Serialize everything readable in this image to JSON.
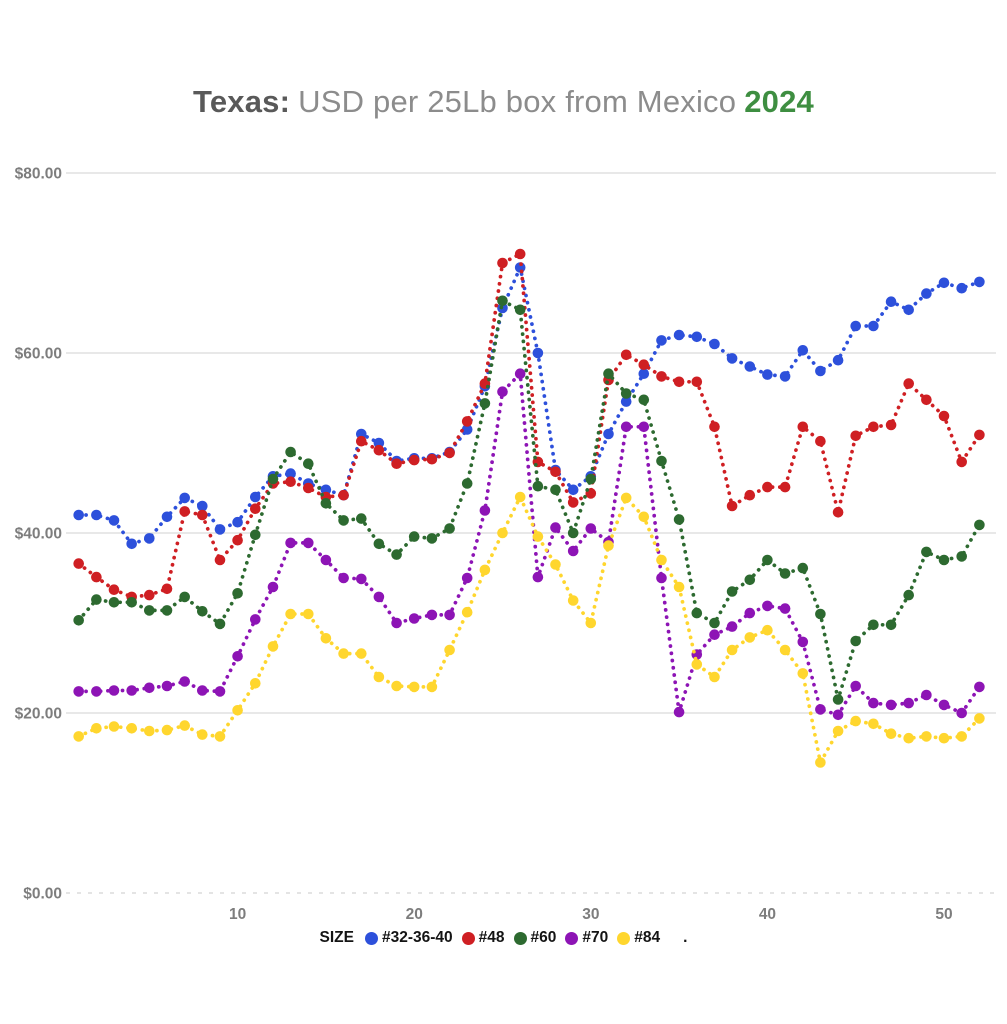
{
  "title": {
    "prefix": "Texas:",
    "main": "USD per 25Lb box from Mexico",
    "year": "2024"
  },
  "colors": {
    "title_prefix": "#595959",
    "title_main": "#8c8c8c",
    "title_year": "#3e8e41",
    "axis_label": "#7d7d7d",
    "gridline": "#d9d9d9",
    "zeroline": "#d4d4d4",
    "legend_text": "#141414"
  },
  "legend": {
    "title": "SIZE",
    "trailing_label": "."
  },
  "chart_data": {
    "type": "line",
    "title": "Texas: USD per 25Lb box from Mexico 2024",
    "xlabel": "",
    "ylabel": "",
    "xlim": [
      1,
      52
    ],
    "ylim": [
      0,
      80
    ],
    "grid": "horizontal",
    "legend_position": "bottom",
    "marker": "dot-dashed",
    "x_ticks": [
      10,
      20,
      30,
      40,
      50
    ],
    "y_ticks": [
      {
        "label": "$80.00",
        "value": 80
      },
      {
        "label": "$60.00",
        "value": 60
      },
      {
        "label": "$40.00",
        "value": 40
      },
      {
        "label": "$20.00",
        "value": 20
      },
      {
        "label": "$0.00",
        "value": 0
      }
    ],
    "x": [
      1,
      2,
      3,
      4,
      5,
      6,
      7,
      8,
      9,
      10,
      11,
      12,
      13,
      14,
      15,
      16,
      17,
      18,
      19,
      20,
      21,
      22,
      23,
      24,
      25,
      26,
      27,
      28,
      29,
      30,
      31,
      32,
      33,
      34,
      35,
      36,
      37,
      38,
      39,
      40,
      41,
      42,
      43,
      44,
      45,
      46,
      47,
      48,
      49,
      50,
      51,
      52
    ],
    "series": [
      {
        "name": "#32-36-40",
        "color": "#2d50db",
        "values": [
          42,
          42,
          41.4,
          38.8,
          39.4,
          41.8,
          43.9,
          43,
          40.4,
          41.2,
          44,
          46.3,
          46.6,
          45.5,
          44.8,
          44.2,
          51,
          50,
          48,
          48.3,
          48.3,
          49,
          51.5,
          56.3,
          65,
          69.5,
          60,
          47,
          44.8,
          46.3,
          51,
          54.6,
          57.7,
          61.4,
          62,
          61.8,
          61,
          59.4,
          58.5,
          57.6,
          57.4,
          60.3,
          58,
          59.2,
          63,
          63,
          65.7,
          64.8,
          66.6,
          67.8,
          67.2,
          67.9
        ]
      },
      {
        "name": "#48",
        "color": "#cf1f23",
        "values": [
          36.6,
          35.1,
          33.7,
          32.9,
          33.1,
          33.8,
          42.4,
          42,
          37,
          39.2,
          42.7,
          45.5,
          45.7,
          45,
          44,
          44.2,
          50.2,
          49.2,
          47.7,
          48.1,
          48.2,
          48.9,
          52.4,
          56.6,
          70,
          71,
          47.9,
          46.8,
          43.4,
          44.4,
          57,
          59.8,
          58.7,
          57.4,
          56.8,
          56.8,
          51.8,
          43,
          44.2,
          45.1,
          45.1,
          51.8,
          50.2,
          42.3,
          50.8,
          51.8,
          52,
          56.6,
          54.8,
          53,
          47.9,
          50.9
        ]
      },
      {
        "name": "#60",
        "color": "#2d6a30",
        "values": [
          30.3,
          32.6,
          32.3,
          32.3,
          31.4,
          31.4,
          32.9,
          31.3,
          29.9,
          33.3,
          39.8,
          46,
          49,
          47.7,
          43.3,
          41.4,
          41.6,
          38.8,
          37.6,
          39.6,
          39.4,
          40.5,
          45.5,
          54.4,
          65.8,
          64.8,
          45.2,
          44.8,
          40,
          46,
          57.7,
          55.5,
          54.8,
          48,
          41.5,
          31.1,
          30,
          33.5,
          34.8,
          37,
          35.5,
          36.1,
          31,
          21.5,
          28,
          29.8,
          29.8,
          33.1,
          37.9,
          37,
          37.4,
          40.9
        ]
      },
      {
        "name": "#70",
        "color": "#8d14b5",
        "values": [
          22.4,
          22.4,
          22.5,
          22.5,
          22.8,
          23,
          23.5,
          22.5,
          22.4,
          26.3,
          30.4,
          34,
          38.9,
          38.9,
          37,
          35,
          34.9,
          32.9,
          30,
          30.5,
          30.9,
          30.9,
          35,
          42.5,
          55.7,
          57.7,
          35.1,
          40.6,
          38,
          40.5,
          39,
          51.8,
          51.8,
          35,
          20.1,
          26.5,
          28.7,
          29.6,
          31.1,
          31.9,
          31.6,
          27.9,
          20.4,
          19.8,
          23,
          21.1,
          20.9,
          21.1,
          22,
          20.9,
          20,
          22.9
        ]
      },
      {
        "name": "#84",
        "color": "#ffd62e",
        "values": [
          17.4,
          18.3,
          18.5,
          18.3,
          18,
          18.1,
          18.6,
          17.6,
          17.4,
          20.3,
          23.3,
          27.4,
          31,
          31,
          28.3,
          26.6,
          26.6,
          24,
          23,
          22.9,
          22.9,
          27,
          31.2,
          35.9,
          40,
          44,
          39.6,
          36.5,
          32.5,
          30,
          38.6,
          43.9,
          41.8,
          37,
          34,
          25.4,
          24,
          27,
          28.4,
          29.2,
          27,
          24.4,
          14.5,
          18,
          19.1,
          18.8,
          17.7,
          17.2,
          17.4,
          17.2,
          17.4,
          19.4
        ]
      }
    ]
  }
}
